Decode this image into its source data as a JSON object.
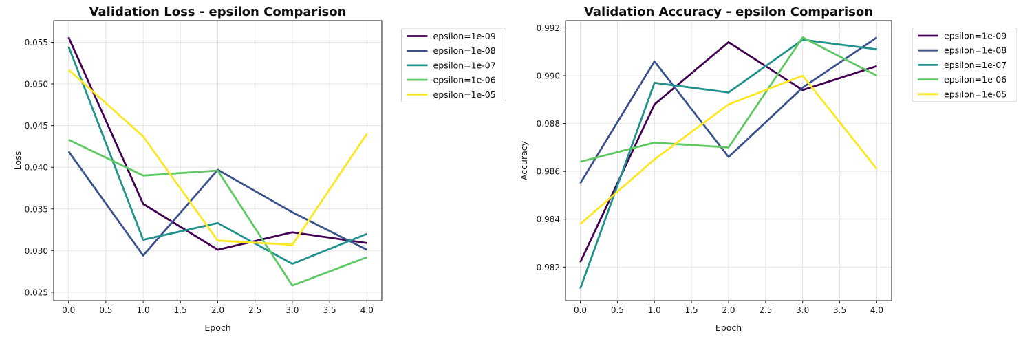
{
  "page": {
    "background": "#ffffff"
  },
  "palette": {
    "viridis_purple": "#440154",
    "viridis_blue": "#3b528b",
    "viridis_teal": "#21918c",
    "viridis_green": "#5ec962",
    "viridis_yellow": "#fde725",
    "grid": "#e4e4e4",
    "legend_border": "#cccccc"
  },
  "chart_data": [
    {
      "type": "line",
      "title": "Validation Loss - epsilon Comparison",
      "xlabel": "Epoch",
      "ylabel": "Loss",
      "grid": true,
      "legend_position": "outside-upper-right",
      "x": [
        0,
        1,
        2,
        3,
        4
      ],
      "xlim": [
        -0.2,
        4.2
      ],
      "ylim": [
        0.024,
        0.0576
      ],
      "xticks": [
        0.0,
        0.5,
        1.0,
        1.5,
        2.0,
        2.5,
        3.0,
        3.5,
        4.0
      ],
      "xticklabels": [
        "0.0",
        "0.5",
        "1.0",
        "1.5",
        "2.0",
        "2.5",
        "3.0",
        "3.5",
        "4.0"
      ],
      "yticks": [
        0.025,
        0.03,
        0.035,
        0.04,
        0.045,
        0.05,
        0.055
      ],
      "yticklabels": [
        "0.025",
        "0.030",
        "0.035",
        "0.040",
        "0.045",
        "0.050",
        "0.055"
      ],
      "series": [
        {
          "name": "epsilon=1e-09",
          "color": "#440154",
          "values": [
            0.0556,
            0.0356,
            0.0301,
            0.0322,
            0.0309
          ]
        },
        {
          "name": "epsilon=1e-08",
          "color": "#3b528b",
          "values": [
            0.0419,
            0.0294,
            0.0397,
            0.0346,
            0.0301
          ]
        },
        {
          "name": "epsilon=1e-07",
          "color": "#21918c",
          "values": [
            0.0545,
            0.0313,
            0.0333,
            0.0284,
            0.032
          ]
        },
        {
          "name": "epsilon=1e-06",
          "color": "#5ec962",
          "values": [
            0.0433,
            0.039,
            0.0396,
            0.0258,
            0.0292
          ]
        },
        {
          "name": "epsilon=1e-05",
          "color": "#fde725",
          "values": [
            0.0517,
            0.0437,
            0.0312,
            0.0307,
            0.044
          ]
        }
      ]
    },
    {
      "type": "line",
      "title": "Validation Accuracy - epsilon Comparison",
      "xlabel": "Epoch",
      "ylabel": "Accuracy",
      "grid": true,
      "legend_position": "outside-upper-right",
      "x": [
        0,
        1,
        2,
        3,
        4
      ],
      "xlim": [
        -0.2,
        4.2
      ],
      "ylim": [
        0.9806,
        0.9923
      ],
      "xticks": [
        0.0,
        0.5,
        1.0,
        1.5,
        2.0,
        2.5,
        3.0,
        3.5,
        4.0
      ],
      "xticklabels": [
        "0.0",
        "0.5",
        "1.0",
        "1.5",
        "2.0",
        "2.5",
        "3.0",
        "3.5",
        "4.0"
      ],
      "yticks": [
        0.982,
        0.984,
        0.986,
        0.988,
        0.99,
        0.992
      ],
      "yticklabels": [
        "0.982",
        "0.984",
        "0.986",
        "0.988",
        "0.990",
        "0.992"
      ],
      "series": [
        {
          "name": "epsilon=1e-09",
          "color": "#440154",
          "values": [
            0.9822,
            0.9888,
            0.9914,
            0.9894,
            0.9904
          ]
        },
        {
          "name": "epsilon=1e-08",
          "color": "#3b528b",
          "values": [
            0.9855,
            0.9906,
            0.9866,
            0.9895,
            0.9916
          ]
        },
        {
          "name": "epsilon=1e-07",
          "color": "#21918c",
          "values": [
            0.9811,
            0.9897,
            0.9893,
            0.9915,
            0.9911
          ]
        },
        {
          "name": "epsilon=1e-06",
          "color": "#5ec962",
          "values": [
            0.9864,
            0.9872,
            0.987,
            0.9916,
            0.99
          ]
        },
        {
          "name": "epsilon=1e-05",
          "color": "#fde725",
          "values": [
            0.9838,
            0.9865,
            0.9888,
            0.99,
            0.9861
          ]
        }
      ]
    }
  ]
}
